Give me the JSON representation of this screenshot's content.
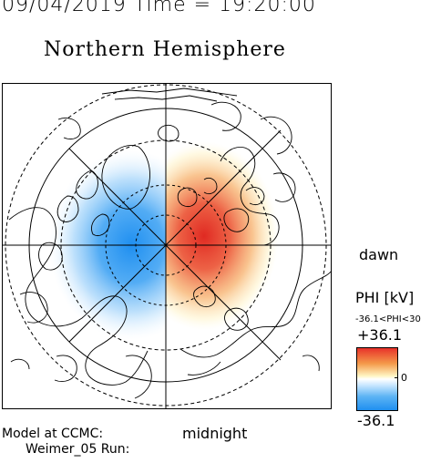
{
  "header": {
    "datetime": "09/04/2019 Time = 19:20:00",
    "title": "Northern Hemisphere"
  },
  "map": {
    "directions": {
      "dawn": "dawn",
      "midnight": "midnight"
    },
    "colors": {
      "negative": "#1f8ff0",
      "positive": "#e8322a",
      "zero": "#ffffff"
    }
  },
  "colorbar": {
    "label": "PHI [kV]",
    "range_text": "-36.1<PHI<30",
    "max": "+36.1",
    "mid": "0",
    "min": "-36.1"
  },
  "footer": {
    "model_label": "Model at CCMC:",
    "model_name": "Weimer_05 Run:"
  }
}
